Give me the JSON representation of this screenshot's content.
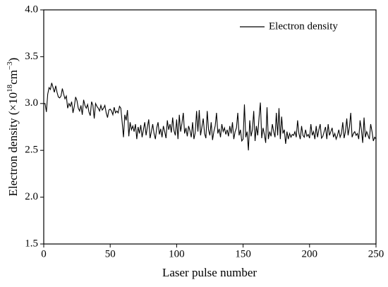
{
  "chart_data": {
    "type": "line",
    "xlabel": "Laser pulse number",
    "ylabel": [
      "Electron density (×10",
      "18",
      "cm",
      "−3",
      ")"
    ],
    "xlim": [
      0,
      250
    ],
    "xticks": [
      0,
      50,
      100,
      150,
      200,
      250
    ],
    "ylim": [
      1.5,
      4
    ],
    "yticks": [
      1.5,
      {
        "value": 2,
        "label": "2.0"
      },
      2.5,
      {
        "value": 3,
        "label": "3.0"
      },
      3.5,
      {
        "value": 4,
        "label": "4.0"
      }
    ],
    "legend": "upper right",
    "x": [
      0,
      1,
      2,
      3,
      4,
      5,
      6,
      7,
      8,
      9,
      10,
      11,
      12,
      13,
      14,
      15,
      16,
      17,
      18,
      19,
      20,
      21,
      22,
      23,
      24,
      25,
      26,
      27,
      28,
      29,
      30,
      31,
      32,
      33,
      34,
      35,
      36,
      37,
      38,
      39,
      40,
      41,
      42,
      43,
      44,
      45,
      46,
      47,
      48,
      49,
      50,
      51,
      52,
      53,
      54,
      55,
      56,
      57,
      58,
      59,
      60,
      61,
      62,
      63,
      64,
      65,
      66,
      67,
      68,
      69,
      70,
      71,
      72,
      73,
      74,
      75,
      76,
      77,
      78,
      79,
      80,
      81,
      82,
      83,
      84,
      85,
      86,
      87,
      88,
      89,
      90,
      91,
      92,
      93,
      94,
      95,
      96,
      97,
      98,
      99,
      100,
      101,
      102,
      103,
      104,
      105,
      106,
      107,
      108,
      109,
      110,
      111,
      112,
      113,
      114,
      115,
      116,
      117,
      118,
      119,
      120,
      121,
      122,
      123,
      124,
      125,
      126,
      127,
      128,
      129,
      130,
      131,
      132,
      133,
      134,
      135,
      136,
      137,
      138,
      139,
      140,
      141,
      142,
      143,
      144,
      145,
      146,
      147,
      148,
      149,
      150,
      151,
      152,
      153,
      154,
      155,
      156,
      157,
      158,
      159,
      160,
      161,
      162,
      163,
      164,
      165,
      166,
      167,
      168,
      169,
      170,
      171,
      172,
      173,
      174,
      175,
      176,
      177,
      178,
      179,
      180,
      181,
      182,
      183,
      184,
      185,
      186,
      187,
      188,
      189,
      190,
      191,
      192,
      193,
      194,
      195,
      196,
      197,
      198,
      199,
      200,
      201,
      202,
      203,
      204,
      205,
      206,
      207,
      208,
      209,
      210,
      211,
      212,
      213,
      214,
      215,
      216,
      217,
      218,
      219,
      220,
      221,
      222,
      223,
      224,
      225,
      226,
      227,
      228,
      229,
      230,
      231,
      232,
      233,
      234,
      235,
      236,
      237,
      238,
      239,
      240,
      241,
      242,
      243,
      244,
      245,
      246,
      247,
      248,
      249,
      250
    ],
    "series": [
      {
        "name": "Electron density",
        "color": "#000000",
        "values": [
          3.0,
          3.0,
          2.91,
          3.1,
          3.17,
          3.15,
          3.22,
          3.17,
          3.12,
          3.19,
          3.12,
          3.07,
          3.06,
          3.08,
          3.16,
          3.1,
          3.05,
          3.08,
          2.95,
          3.0,
          2.97,
          3.02,
          2.9,
          2.97,
          3.07,
          3.03,
          2.95,
          2.92,
          2.98,
          2.88,
          3.04,
          2.98,
          2.95,
          2.99,
          2.91,
          2.87,
          3.02,
          2.98,
          2.84,
          3.0,
          2.97,
          2.95,
          2.92,
          2.98,
          2.93,
          2.95,
          2.98,
          2.9,
          2.85,
          2.93,
          2.94,
          2.92,
          2.88,
          2.96,
          2.9,
          2.92,
          2.9,
          2.97,
          2.95,
          2.8,
          2.64,
          2.88,
          2.82,
          2.93,
          2.65,
          2.8,
          2.72,
          2.76,
          2.7,
          2.78,
          2.62,
          2.75,
          2.68,
          2.77,
          2.64,
          2.72,
          2.8,
          2.66,
          2.75,
          2.83,
          2.63,
          2.7,
          2.78,
          2.68,
          2.62,
          2.74,
          2.8,
          2.67,
          2.73,
          2.64,
          2.76,
          2.7,
          2.63,
          2.82,
          2.72,
          2.78,
          2.69,
          2.85,
          2.71,
          2.66,
          2.83,
          2.62,
          2.88,
          2.7,
          2.79,
          2.9,
          2.68,
          2.74,
          2.65,
          2.76,
          2.71,
          2.64,
          2.8,
          2.62,
          2.69,
          2.92,
          2.7,
          2.93,
          2.66,
          2.75,
          2.84,
          2.68,
          2.63,
          2.92,
          2.72,
          2.66,
          2.8,
          2.61,
          2.7,
          2.76,
          2.9,
          2.68,
          2.73,
          2.64,
          2.78,
          2.7,
          2.74,
          2.67,
          2.72,
          2.65,
          2.76,
          2.68,
          2.8,
          2.62,
          2.7,
          2.74,
          2.9,
          2.66,
          2.72,
          2.6,
          2.62,
          2.99,
          2.64,
          2.7,
          2.5,
          2.82,
          2.65,
          2.72,
          2.92,
          2.6,
          2.76,
          2.66,
          2.85,
          3.01,
          2.63,
          2.74,
          2.67,
          2.58,
          2.96,
          2.62,
          2.7,
          2.65,
          2.78,
          2.7,
          2.64,
          2.9,
          2.66,
          2.95,
          2.62,
          2.86,
          2.68,
          2.72,
          2.57,
          2.7,
          2.62,
          2.68,
          2.64,
          2.67,
          2.66,
          2.7,
          2.64,
          2.82,
          2.68,
          2.62,
          2.76,
          2.66,
          2.64,
          2.72,
          2.65,
          2.67,
          2.63,
          2.78,
          2.66,
          2.7,
          2.62,
          2.76,
          2.64,
          2.72,
          2.78,
          2.63,
          2.65,
          2.7,
          2.75,
          2.62,
          2.78,
          2.66,
          2.7,
          2.74,
          2.64,
          2.68,
          2.62,
          2.66,
          2.72,
          2.64,
          2.68,
          2.8,
          2.63,
          2.7,
          2.84,
          2.66,
          2.75,
          2.9,
          2.64,
          2.68,
          2.7,
          2.66,
          2.68,
          2.62,
          2.82,
          2.72,
          2.58,
          2.85,
          2.64,
          2.7,
          2.66,
          2.62,
          2.78,
          2.7,
          2.6,
          2.64,
          2.62
        ]
      }
    ]
  }
}
